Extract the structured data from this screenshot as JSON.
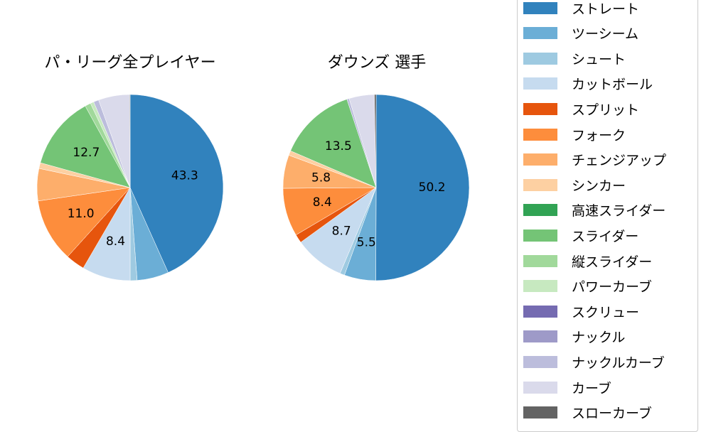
{
  "chart_data": [
    {
      "type": "pie",
      "title": "パ・リーグ全プレイヤー",
      "start_angle": 90,
      "direction": "clockwise",
      "categories": [
        "ストレート",
        "ツーシーム",
        "シュート",
        "カットボール",
        "スプリット",
        "フォーク",
        "チェンジアップ",
        "シンカー",
        "高速スライダー",
        "スライダー",
        "縦スライダー",
        "パワーカーブ",
        "スクリュー",
        "ナックル",
        "ナックルカーブ",
        "カーブ",
        "スローカーブ"
      ],
      "values": [
        43.3,
        5.5,
        1.2,
        8.4,
        3.3,
        11.0,
        5.6,
        1.0,
        0.0,
        12.7,
        1.0,
        0.6,
        0.0,
        0.0,
        0.9,
        5.4,
        0.1
      ],
      "labeled_values": {
        "ストレート": "43.3",
        "カットボール": "8.4",
        "フォーク": "11.0",
        "スライダー": "12.7"
      }
    },
    {
      "type": "pie",
      "title": "ダウンズ  選手",
      "start_angle": 90,
      "direction": "clockwise",
      "categories": [
        "ストレート",
        "ツーシーム",
        "シュート",
        "カットボール",
        "スプリット",
        "フォーク",
        "チェンジアップ",
        "シンカー",
        "高速スライダー",
        "スライダー",
        "縦スライダー",
        "パワーカーブ",
        "スクリュー",
        "ナックル",
        "ナックルカーブ",
        "カーブ",
        "スローカーブ"
      ],
      "values": [
        50.2,
        5.5,
        0.8,
        8.7,
        1.5,
        8.4,
        5.8,
        0.8,
        0.0,
        13.5,
        0.0,
        0.0,
        0.0,
        0.0,
        0.4,
        4.4,
        0.3
      ],
      "labeled_values": {
        "ストレート": "50.2",
        "ツーシーム": "5.5",
        "カットボール": "8.7",
        "フォーク": "8.4",
        "チェンジアップ": "5.8",
        "スライダー": "13.5"
      }
    }
  ],
  "colors": {
    "ストレート": "#3182bd",
    "ツーシーム": "#6baed6",
    "シュート": "#9ecae1",
    "カットボール": "#c6dbef",
    "スプリット": "#e6550d",
    "フォーク": "#fd8d3c",
    "チェンジアップ": "#fdae6b",
    "シンカー": "#fdd0a2",
    "高速スライダー": "#31a354",
    "スライダー": "#74c476",
    "縦スライダー": "#a1d99b",
    "パワーカーブ": "#c7e9c0",
    "スクリュー": "#756bb1",
    "ナックル": "#9e9ac8",
    "ナックルカーブ": "#bcbddc",
    "カーブ": "#dadaeb",
    "スローカーブ": "#636363"
  },
  "titles": {
    "left": "パ・リーグ全プレイヤー",
    "right": "ダウンズ  選手"
  },
  "legend": {
    "items": [
      {
        "label": "ストレート",
        "color": "#3182bd"
      },
      {
        "label": "ツーシーム",
        "color": "#6baed6"
      },
      {
        "label": "シュート",
        "color": "#9ecae1"
      },
      {
        "label": "カットボール",
        "color": "#c6dbef"
      },
      {
        "label": "スプリット",
        "color": "#e6550d"
      },
      {
        "label": "フォーク",
        "color": "#fd8d3c"
      },
      {
        "label": "チェンジアップ",
        "color": "#fdae6b"
      },
      {
        "label": "シンカー",
        "color": "#fdd0a2"
      },
      {
        "label": "高速スライダー",
        "color": "#31a354"
      },
      {
        "label": "スライダー",
        "color": "#74c476"
      },
      {
        "label": "縦スライダー",
        "color": "#a1d99b"
      },
      {
        "label": "パワーカーブ",
        "color": "#c7e9c0"
      },
      {
        "label": "スクリュー",
        "color": "#756bb1"
      },
      {
        "label": "ナックル",
        "color": "#9e9ac8"
      },
      {
        "label": "ナックルカーブ",
        "color": "#bcbddc"
      },
      {
        "label": "カーブ",
        "color": "#dadaeb"
      },
      {
        "label": "スローカーブ",
        "color": "#636363"
      }
    ]
  }
}
